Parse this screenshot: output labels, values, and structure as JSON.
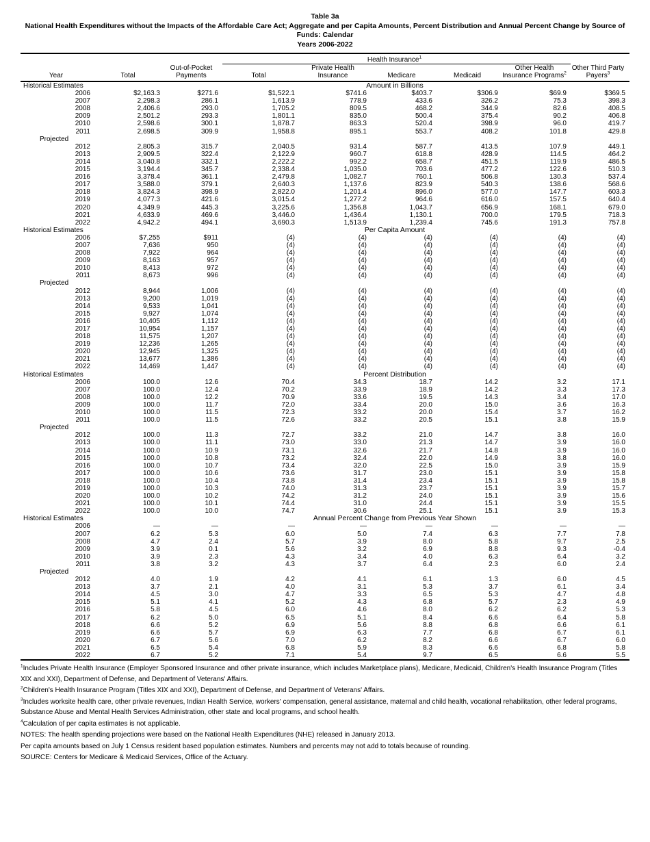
{
  "page": {
    "table_label": "Table 3a",
    "title_line1": "National Health Expenditures without the Impacts of the Affordable Care Act; Aggregate and per Capita Amounts, Percent Distribution and Annual Percent Change by Source of Funds:  Calendar",
    "title_line2": "Years 2006-2022"
  },
  "header": {
    "group_label": "Health Insurance",
    "group_sup": "1",
    "columns": [
      {
        "top": "",
        "bottom": "Year"
      },
      {
        "top": "",
        "bottom": "Total"
      },
      {
        "top": "Out-of-Pocket",
        "bottom": "Payments"
      },
      {
        "top": "",
        "bottom": "Total"
      },
      {
        "top": "Private Health",
        "bottom": "Insurance"
      },
      {
        "top": "",
        "bottom": "Medicare"
      },
      {
        "top": "",
        "bottom": "Medicaid"
      },
      {
        "top": "Other Health",
        "bottom": "Insurance Programs",
        "sup": "2"
      },
      {
        "top": "Other Third Party",
        "bottom": "Payers",
        "sup": "3"
      }
    ]
  },
  "sections": [
    {
      "title": "Amount in Billions",
      "blocks": [
        {
          "label": "Historical Estimates",
          "rows": [
            [
              "2006",
              "$2,163.3",
              "$271.6",
              "$1,522.1",
              "$741.6",
              "$403.7",
              "$306.9",
              "$69.9",
              "$369.5"
            ],
            [
              "2007",
              "2,298.3",
              "286.1",
              "1,613.9",
              "778.9",
              "433.6",
              "326.2",
              "75.3",
              "398.3"
            ],
            [
              "2008",
              "2,406.6",
              "293.0",
              "1,705.2",
              "809.5",
              "468.2",
              "344.9",
              "82.6",
              "408.5"
            ],
            [
              "2009",
              "2,501.2",
              "293.3",
              "1,801.1",
              "835.0",
              "500.4",
              "375.4",
              "90.2",
              "406.8"
            ],
            [
              "2010",
              "2,598.6",
              "300.1",
              "1,878.7",
              "863.3",
              "520.4",
              "398.9",
              "96.0",
              "419.7"
            ],
            [
              "2011",
              "2,698.5",
              "309.9",
              "1,958.8",
              "895.1",
              "553.7",
              "408.2",
              "101.8",
              "429.8"
            ]
          ]
        },
        {
          "label": "Projected",
          "rows": [
            [
              "2012",
              "2,805.3",
              "315.7",
              "2,040.5",
              "931.4",
              "587.7",
              "413.5",
              "107.9",
              "449.1"
            ],
            [
              "2013",
              "2,909.5",
              "322.4",
              "2,122.9",
              "960.7",
              "618.8",
              "428.9",
              "114.5",
              "464.2"
            ],
            [
              "2014",
              "3,040.8",
              "332.1",
              "2,222.2",
              "992.2",
              "658.7",
              "451.5",
              "119.9",
              "486.5"
            ],
            [
              "2015",
              "3,194.4",
              "345.7",
              "2,338.4",
              "1,035.0",
              "703.6",
              "477.2",
              "122.6",
              "510.3"
            ],
            [
              "2016",
              "3,378.4",
              "361.1",
              "2,479.8",
              "1,082.7",
              "760.1",
              "506.8",
              "130.3",
              "537.4"
            ],
            [
              "2017",
              "3,588.0",
              "379.1",
              "2,640.3",
              "1,137.6",
              "823.9",
              "540.3",
              "138.6",
              "568.6"
            ],
            [
              "2018",
              "3,824.3",
              "398.9",
              "2,822.0",
              "1,201.4",
              "896.0",
              "577.0",
              "147.7",
              "603.3"
            ],
            [
              "2019",
              "4,077.3",
              "421.6",
              "3,015.4",
              "1,277.2",
              "964.6",
              "616.0",
              "157.5",
              "640.4"
            ],
            [
              "2020",
              "4,349.9",
              "445.3",
              "3,225.6",
              "1,356.8",
              "1,043.7",
              "656.9",
              "168.1",
              "679.0"
            ],
            [
              "2021",
              "4,633.9",
              "469.6",
              "3,446.0",
              "1,436.4",
              "1,130.1",
              "700.0",
              "179.5",
              "718.3"
            ],
            [
              "2022",
              "4,942.2",
              "494.1",
              "3,690.3",
              "1,513.9",
              "1,239.4",
              "745.6",
              "191.3",
              "757.8"
            ]
          ]
        }
      ]
    },
    {
      "title": "Per Capita Amount",
      "blocks": [
        {
          "label": "Historical Estimates",
          "rows": [
            [
              "2006",
              "$7,255",
              "$911",
              "(4)",
              "(4)",
              "(4)",
              "(4)",
              "(4)",
              "(4)"
            ],
            [
              "2007",
              "7,636",
              "950",
              "(4)",
              "(4)",
              "(4)",
              "(4)",
              "(4)",
              "(4)"
            ],
            [
              "2008",
              "7,922",
              "964",
              "(4)",
              "(4)",
              "(4)",
              "(4)",
              "(4)",
              "(4)"
            ],
            [
              "2009",
              "8,163",
              "957",
              "(4)",
              "(4)",
              "(4)",
              "(4)",
              "(4)",
              "(4)"
            ],
            [
              "2010",
              "8,413",
              "972",
              "(4)",
              "(4)",
              "(4)",
              "(4)",
              "(4)",
              "(4)"
            ],
            [
              "2011",
              "8,673",
              "996",
              "(4)",
              "(4)",
              "(4)",
              "(4)",
              "(4)",
              "(4)"
            ]
          ]
        },
        {
          "label": "Projected",
          "rows": [
            [
              "2012",
              "8,944",
              "1,006",
              "(4)",
              "(4)",
              "(4)",
              "(4)",
              "(4)",
              "(4)"
            ],
            [
              "2013",
              "9,200",
              "1,019",
              "(4)",
              "(4)",
              "(4)",
              "(4)",
              "(4)",
              "(4)"
            ],
            [
              "2014",
              "9,533",
              "1,041",
              "(4)",
              "(4)",
              "(4)",
              "(4)",
              "(4)",
              "(4)"
            ],
            [
              "2015",
              "9,927",
              "1,074",
              "(4)",
              "(4)",
              "(4)",
              "(4)",
              "(4)",
              "(4)"
            ],
            [
              "2016",
              "10,405",
              "1,112",
              "(4)",
              "(4)",
              "(4)",
              "(4)",
              "(4)",
              "(4)"
            ],
            [
              "2017",
              "10,954",
              "1,157",
              "(4)",
              "(4)",
              "(4)",
              "(4)",
              "(4)",
              "(4)"
            ],
            [
              "2018",
              "11,575",
              "1,207",
              "(4)",
              "(4)",
              "(4)",
              "(4)",
              "(4)",
              "(4)"
            ],
            [
              "2019",
              "12,236",
              "1,265",
              "(4)",
              "(4)",
              "(4)",
              "(4)",
              "(4)",
              "(4)"
            ],
            [
              "2020",
              "12,945",
              "1,325",
              "(4)",
              "(4)",
              "(4)",
              "(4)",
              "(4)",
              "(4)"
            ],
            [
              "2021",
              "13,677",
              "1,386",
              "(4)",
              "(4)",
              "(4)",
              "(4)",
              "(4)",
              "(4)"
            ],
            [
              "2022",
              "14,469",
              "1,447",
              "(4)",
              "(4)",
              "(4)",
              "(4)",
              "(4)",
              "(4)"
            ]
          ]
        }
      ]
    },
    {
      "title": "Percent Distribution",
      "blocks": [
        {
          "label": "Historical Estimates",
          "rows": [
            [
              "2006",
              "100.0",
              "12.6",
              "70.4",
              "34.3",
              "18.7",
              "14.2",
              "3.2",
              "17.1"
            ],
            [
              "2007",
              "100.0",
              "12.4",
              "70.2",
              "33.9",
              "18.9",
              "14.2",
              "3.3",
              "17.3"
            ],
            [
              "2008",
              "100.0",
              "12.2",
              "70.9",
              "33.6",
              "19.5",
              "14.3",
              "3.4",
              "17.0"
            ],
            [
              "2009",
              "100.0",
              "11.7",
              "72.0",
              "33.4",
              "20.0",
              "15.0",
              "3.6",
              "16.3"
            ],
            [
              "2010",
              "100.0",
              "11.5",
              "72.3",
              "33.2",
              "20.0",
              "15.4",
              "3.7",
              "16.2"
            ],
            [
              "2011",
              "100.0",
              "11.5",
              "72.6",
              "33.2",
              "20.5",
              "15.1",
              "3.8",
              "15.9"
            ]
          ]
        },
        {
          "label": "Projected",
          "rows": [
            [
              "2012",
              "100.0",
              "11.3",
              "72.7",
              "33.2",
              "21.0",
              "14.7",
              "3.8",
              "16.0"
            ],
            [
              "2013",
              "100.0",
              "11.1",
              "73.0",
              "33.0",
              "21.3",
              "14.7",
              "3.9",
              "16.0"
            ],
            [
              "2014",
              "100.0",
              "10.9",
              "73.1",
              "32.6",
              "21.7",
              "14.8",
              "3.9",
              "16.0"
            ],
            [
              "2015",
              "100.0",
              "10.8",
              "73.2",
              "32.4",
              "22.0",
              "14.9",
              "3.8",
              "16.0"
            ],
            [
              "2016",
              "100.0",
              "10.7",
              "73.4",
              "32.0",
              "22.5",
              "15.0",
              "3.9",
              "15.9"
            ],
            [
              "2017",
              "100.0",
              "10.6",
              "73.6",
              "31.7",
              "23.0",
              "15.1",
              "3.9",
              "15.8"
            ],
            [
              "2018",
              "100.0",
              "10.4",
              "73.8",
              "31.4",
              "23.4",
              "15.1",
              "3.9",
              "15.8"
            ],
            [
              "2019",
              "100.0",
              "10.3",
              "74.0",
              "31.3",
              "23.7",
              "15.1",
              "3.9",
              "15.7"
            ],
            [
              "2020",
              "100.0",
              "10.2",
              "74.2",
              "31.2",
              "24.0",
              "15.1",
              "3.9",
              "15.6"
            ],
            [
              "2021",
              "100.0",
              "10.1",
              "74.4",
              "31.0",
              "24.4",
              "15.1",
              "3.9",
              "15.5"
            ],
            [
              "2022",
              "100.0",
              "10.0",
              "74.7",
              "30.6",
              "25.1",
              "15.1",
              "3.9",
              "15.3"
            ]
          ]
        }
      ]
    },
    {
      "title": "Annual Percent Change from Previous Year Shown",
      "blocks": [
        {
          "label": "Historical Estimates",
          "rows": [
            [
              "2006",
              "—",
              "—",
              "—",
              "—",
              "—",
              "—",
              "—",
              "—"
            ],
            [
              "2007",
              "6.2",
              "5.3",
              "6.0",
              "5.0",
              "7.4",
              "6.3",
              "7.7",
              "7.8"
            ],
            [
              "2008",
              "4.7",
              "2.4",
              "5.7",
              "3.9",
              "8.0",
              "5.8",
              "9.7",
              "2.5"
            ],
            [
              "2009",
              "3.9",
              "0.1",
              "5.6",
              "3.2",
              "6.9",
              "8.8",
              "9.3",
              "-0.4"
            ],
            [
              "2010",
              "3.9",
              "2.3",
              "4.3",
              "3.4",
              "4.0",
              "6.3",
              "6.4",
              "3.2"
            ],
            [
              "2011",
              "3.8",
              "3.2",
              "4.3",
              "3.7",
              "6.4",
              "2.3",
              "6.0",
              "2.4"
            ]
          ]
        },
        {
          "label": "Projected",
          "rows": [
            [
              "2012",
              "4.0",
              "1.9",
              "4.2",
              "4.1",
              "6.1",
              "1.3",
              "6.0",
              "4.5"
            ],
            [
              "2013",
              "3.7",
              "2.1",
              "4.0",
              "3.1",
              "5.3",
              "3.7",
              "6.1",
              "3.4"
            ],
            [
              "2014",
              "4.5",
              "3.0",
              "4.7",
              "3.3",
              "6.5",
              "5.3",
              "4.7",
              "4.8"
            ],
            [
              "2015",
              "5.1",
              "4.1",
              "5.2",
              "4.3",
              "6.8",
              "5.7",
              "2.3",
              "4.9"
            ],
            [
              "2016",
              "5.8",
              "4.5",
              "6.0",
              "4.6",
              "8.0",
              "6.2",
              "6.2",
              "5.3"
            ],
            [
              "2017",
              "6.2",
              "5.0",
              "6.5",
              "5.1",
              "8.4",
              "6.6",
              "6.4",
              "5.8"
            ],
            [
              "2018",
              "6.6",
              "5.2",
              "6.9",
              "5.6",
              "8.8",
              "6.8",
              "6.6",
              "6.1"
            ],
            [
              "2019",
              "6.6",
              "5.7",
              "6.9",
              "6.3",
              "7.7",
              "6.8",
              "6.7",
              "6.1"
            ],
            [
              "2020",
              "6.7",
              "5.6",
              "7.0",
              "6.2",
              "8.2",
              "6.6",
              "6.7",
              "6.0"
            ],
            [
              "2021",
              "6.5",
              "5.4",
              "6.8",
              "5.9",
              "8.3",
              "6.6",
              "6.8",
              "5.8"
            ],
            [
              "2022",
              "6.7",
              "5.2",
              "7.1",
              "5.4",
              "9.7",
              "6.5",
              "6.6",
              "5.5"
            ]
          ]
        }
      ]
    }
  ],
  "footnotes": [
    {
      "sup": "1",
      "text": "Includes Private Health Insurance (Employer Sponsored Insurance and other private insurance, which includes Marketplace plans), Medicare, Medicaid, Children's Health Insurance Program (Titles XIX and XXI), Department of Defense, and Department of Veterans' Affairs."
    },
    {
      "sup": "2",
      "text": "Children's Health Insurance Program (Titles XIX and XXI), Department of Defense, and Department of Veterans' Affairs."
    },
    {
      "sup": "3",
      "text": "Includes worksite health care, other private revenues, Indian Health Service, workers' compensation, general assistance, maternal and child health, vocational rehabilitation, other federal programs, Substance Abuse and Mental Health Services Administration, other state and local programs, and school health."
    },
    {
      "sup": "4",
      "text": "Calculation of per capita estimates is not applicable."
    }
  ],
  "notes": [
    "NOTES: The health spending projections were based on the National Health Expenditures (NHE) released in January 2013.",
    "Per capita amounts based on July 1 Census resident based population estimates.  Numbers and percents may not add to totals because of rounding.",
    "SOURCE:  Centers for Medicare & Medicaid Services, Office of the Actuary."
  ]
}
